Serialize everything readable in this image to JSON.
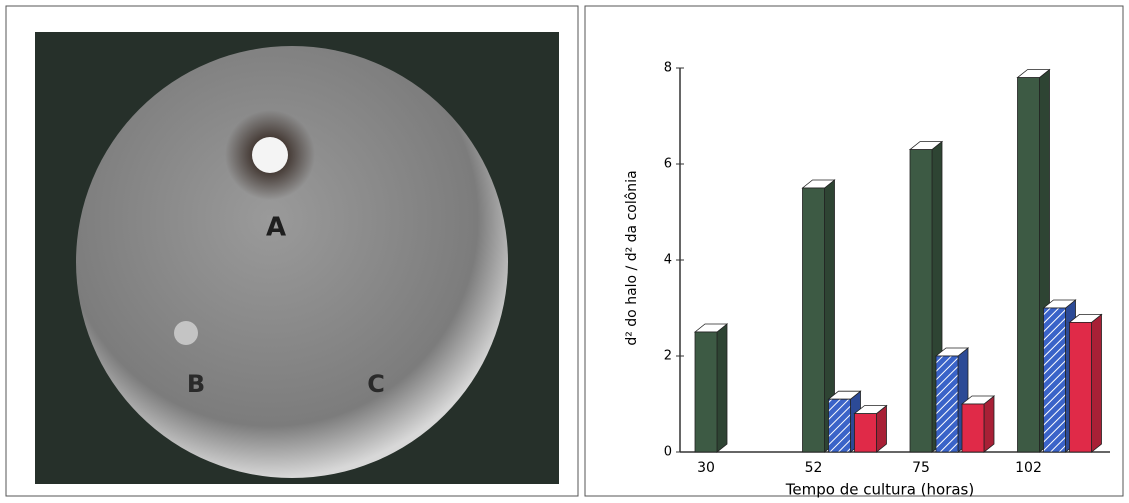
{
  "photo_labels": [
    "A",
    "B",
    "C"
  ],
  "chart_data": {
    "type": "bar3d",
    "x_label": "Tempo de cultura (horas)",
    "y_label": "d² do halo / d² da colônia",
    "categories": [
      "30",
      "52",
      "75",
      "102"
    ],
    "series": [
      {
        "color": "#3d5a44",
        "values": [
          2.5,
          5.5,
          6.3,
          7.8
        ]
      },
      {
        "color": "#3a63c8",
        "values": [
          null,
          1.1,
          2.0,
          3.0
        ]
      },
      {
        "color": "#e02a48",
        "values": [
          null,
          0.8,
          1.0,
          2.7
        ]
      }
    ],
    "ylim": [
      0,
      8
    ],
    "yticks": [
      0,
      2,
      4,
      6,
      8
    ]
  }
}
